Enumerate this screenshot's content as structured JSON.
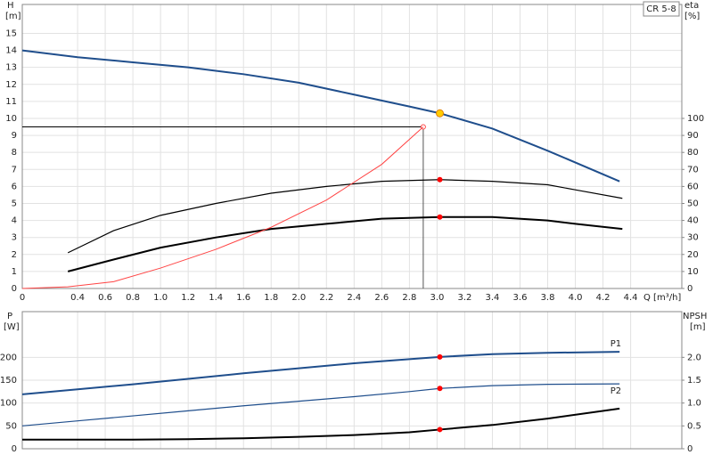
{
  "chart_data": [
    {
      "type": "line",
      "subtitle": "CR 5-8",
      "ylabel": "H",
      "yunit": "[m]",
      "y2label": "eta",
      "y2unit": "[%]",
      "xlabel": "Q [m³/h]",
      "xlim": [
        0,
        4.77
      ],
      "ylim": [
        0,
        16.7
      ],
      "y2lim": [
        0,
        167
      ],
      "xticks": [
        0,
        0.4,
        0.6,
        0.8,
        {
          "value": 1,
          "label": "1.0"
        },
        1.2,
        1.4,
        1.6,
        1.8,
        {
          "value": 2,
          "label": "2.0"
        },
        2.2,
        2.4,
        2.6,
        2.8,
        {
          "value": 3,
          "label": "3.0"
        },
        3.2,
        3.4,
        3.6,
        3.8,
        {
          "value": 4,
          "label": "4.0"
        },
        4.2,
        4.4
      ],
      "yticks": [
        0,
        1,
        2,
        3,
        4,
        5,
        6,
        7,
        8,
        9,
        10,
        11,
        12,
        13,
        14,
        15
      ],
      "y2ticks": [
        0,
        10,
        20,
        30,
        40,
        50,
        60,
        70,
        80,
        90,
        100
      ],
      "grid": true,
      "series": [
        {
          "color": "#1f4e8c",
          "width": 2,
          "x": [
            0,
            0.4,
            0.8,
            1.2,
            1.6,
            2.0,
            2.4,
            2.8,
            3.02,
            3.4,
            3.8,
            4.32
          ],
          "values": [
            14.0,
            13.6,
            13.3,
            13.0,
            12.6,
            12.1,
            11.4,
            10.7,
            10.3,
            9.4,
            8.1,
            6.3
          ]
        },
        {
          "color": "#000000",
          "width": 1.2,
          "axis": "y2",
          "x": [
            0.33,
            0.66,
            1.0,
            1.4,
            1.8,
            2.2,
            2.6,
            3.02,
            3.4,
            3.8,
            4.0,
            4.34
          ],
          "values": [
            21,
            34,
            43,
            50,
            56,
            60,
            63,
            64,
            63,
            61,
            58,
            53
          ]
        },
        {
          "color": "#000000",
          "width": 2,
          "axis": "y2",
          "x": [
            0.33,
            0.66,
            1.0,
            1.4,
            1.8,
            2.2,
            2.6,
            3.02,
            3.4,
            3.8,
            4.0,
            4.34
          ],
          "values": [
            10,
            17,
            24,
            30,
            35,
            38,
            41,
            42,
            42,
            40,
            38,
            35
          ]
        },
        {
          "color": "#ff4444",
          "width": 1,
          "x": [
            0,
            0.33,
            0.66,
            1.0,
            1.4,
            1.8,
            2.2,
            2.6,
            2.9
          ],
          "values": [
            0,
            0.1,
            0.4,
            1.2,
            2.3,
            3.6,
            5.2,
            7.3,
            9.5
          ]
        }
      ],
      "duty_point": {
        "x": 2.9,
        "y": 9.5
      },
      "points": [
        {
          "x": 3.02,
          "y": 10.3,
          "color": "#ffcc00"
        },
        {
          "x": 3.02,
          "y": 64,
          "color": "#ff0000",
          "axis": "y2"
        },
        {
          "x": 3.02,
          "y": 42,
          "color": "#ff0000",
          "axis": "y2"
        }
      ]
    },
    {
      "type": "line",
      "ylabel": "P",
      "yunit": "[W]",
      "y2label": "NPSH",
      "y2unit": "[m]",
      "xlim": [
        0,
        4.77
      ],
      "ylim": [
        0,
        300
      ],
      "y2lim": [
        0,
        3
      ],
      "yticks": [
        0,
        50,
        100,
        150,
        200
      ],
      "y2ticks": [
        0,
        0.5,
        {
          "value": 1,
          "label": "1.0"
        },
        1.5,
        {
          "value": 2,
          "label": "2.0"
        }
      ],
      "grid": true,
      "series": [
        {
          "name": "P1",
          "color": "#1f4e8c",
          "width": 2,
          "x": [
            0,
            0.4,
            0.8,
            1.2,
            1.6,
            2.0,
            2.4,
            2.8,
            3.02,
            3.4,
            3.8,
            4.32
          ],
          "values": [
            119,
            130,
            141,
            153,
            165,
            176,
            187,
            196,
            201,
            207,
            210,
            212
          ]
        },
        {
          "name": "P2",
          "color": "#1f4e8c",
          "width": 1.2,
          "x": [
            0,
            0.4,
            0.8,
            1.2,
            1.6,
            2.0,
            2.4,
            2.8,
            3.02,
            3.4,
            3.8,
            4.32
          ],
          "values": [
            50,
            61,
            72,
            83,
            94,
            104,
            114,
            125,
            132,
            138,
            141,
            142
          ]
        },
        {
          "color": "#000000",
          "width": 2,
          "axis": "y2",
          "x": [
            0,
            0.4,
            0.8,
            1.2,
            1.6,
            2.0,
            2.4,
            2.8,
            3.02,
            3.4,
            3.8,
            4.32
          ],
          "values": [
            0.2,
            0.2,
            0.2,
            0.21,
            0.23,
            0.26,
            0.3,
            0.36,
            0.42,
            0.52,
            0.66,
            0.88
          ]
        }
      ],
      "points": [
        {
          "x": 3.02,
          "y": 201,
          "color": "#ff0000"
        },
        {
          "x": 3.02,
          "y": 132,
          "color": "#ff0000"
        },
        {
          "x": 3.02,
          "y": 0.42,
          "color": "#ff0000",
          "axis": "y2"
        }
      ]
    }
  ]
}
